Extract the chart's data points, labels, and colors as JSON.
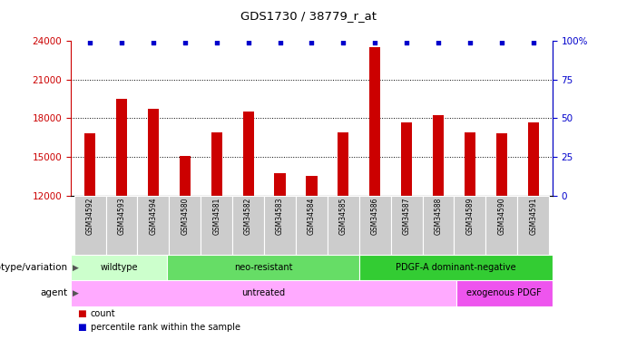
{
  "title": "GDS1730 / 38779_r_at",
  "samples": [
    "GSM34592",
    "GSM34593",
    "GSM34594",
    "GSM34580",
    "GSM34581",
    "GSM34582",
    "GSM34583",
    "GSM34584",
    "GSM34585",
    "GSM34586",
    "GSM34587",
    "GSM34588",
    "GSM34589",
    "GSM34590",
    "GSM34591"
  ],
  "bar_values": [
    16800,
    19500,
    18700,
    15100,
    16900,
    18500,
    13700,
    13500,
    16900,
    23500,
    17700,
    18200,
    16900,
    16800,
    17700
  ],
  "percentile_values": [
    99,
    99,
    99,
    99,
    99,
    99,
    99,
    99,
    99,
    99,
    99,
    99,
    99,
    99,
    99
  ],
  "bar_color": "#cc0000",
  "percentile_color": "#0000cc",
  "ylim_left": [
    12000,
    24000
  ],
  "ylim_right": [
    0,
    100
  ],
  "yticks_left": [
    12000,
    15000,
    18000,
    21000,
    24000
  ],
  "yticks_right": [
    0,
    25,
    50,
    75,
    100
  ],
  "ytick_labels_right": [
    "0",
    "25",
    "50",
    "75",
    "100%"
  ],
  "grid_values": [
    15000,
    18000,
    21000
  ],
  "genotype_groups": [
    {
      "label": "wildtype",
      "start": 0,
      "end": 3,
      "color": "#ccffcc"
    },
    {
      "label": "neo-resistant",
      "start": 3,
      "end": 9,
      "color": "#66dd66"
    },
    {
      "label": "PDGF-A dominant-negative",
      "start": 9,
      "end": 15,
      "color": "#33cc33"
    }
  ],
  "agent_groups": [
    {
      "label": "untreated",
      "start": 0,
      "end": 12,
      "color": "#ffaaff"
    },
    {
      "label": "exogenous PDGF",
      "start": 12,
      "end": 15,
      "color": "#ee55ee"
    }
  ],
  "background_color": "#ffffff",
  "sample_bg_color": "#cccccc",
  "legend_items": [
    {
      "label": "count",
      "color": "#cc0000"
    },
    {
      "label": "percentile rank within the sample",
      "color": "#0000cc"
    }
  ],
  "genotype_label": "genotype/variation",
  "agent_label": "agent"
}
